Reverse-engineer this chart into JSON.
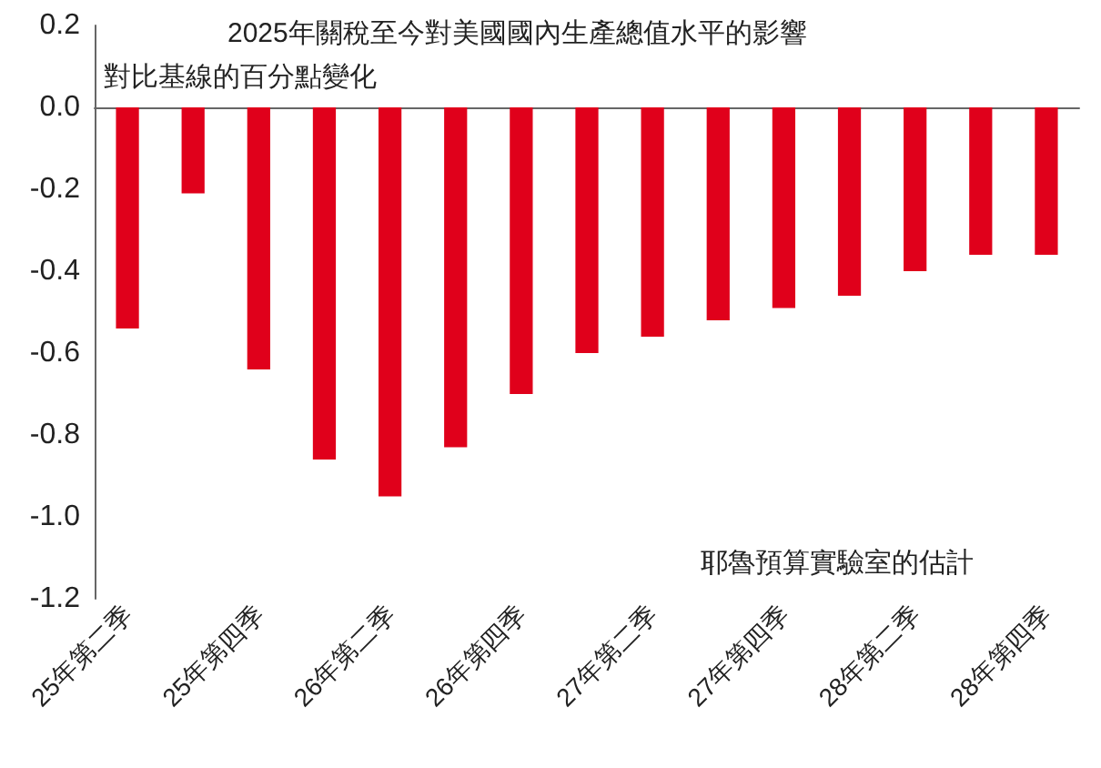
{
  "chart_data": {
    "type": "bar",
    "title": "2025年關稅至今對美國國內生產總值水平的影響",
    "subtitle": "對比基線的百分點變化",
    "annotations": [
      "耶魯預算實驗室的估計"
    ],
    "categories": [
      "25年第二季",
      null,
      "25年第四季",
      null,
      "26年第二季",
      null,
      "26年第四季",
      null,
      "27年第二季",
      null,
      "27年第四季",
      null,
      "28年第二季",
      null,
      "28年第四季"
    ],
    "values": [
      -0.54,
      -0.21,
      -0.64,
      -0.86,
      -0.95,
      -0.83,
      -0.7,
      -0.6,
      -0.56,
      -0.52,
      -0.49,
      -0.46,
      -0.4,
      -0.36,
      -0.36
    ],
    "color": "#e0001b",
    "ylim": [
      -1.2,
      0.2
    ],
    "yticks": [
      {
        "value": -1.2,
        "label": "-1.2"
      },
      {
        "value": -1,
        "label": "-1.0"
      },
      -0.8,
      -0.6,
      -0.4,
      -0.2,
      {
        "value": 0,
        "label": "0.0"
      },
      0.2
    ],
    "tick_labels": true
  }
}
